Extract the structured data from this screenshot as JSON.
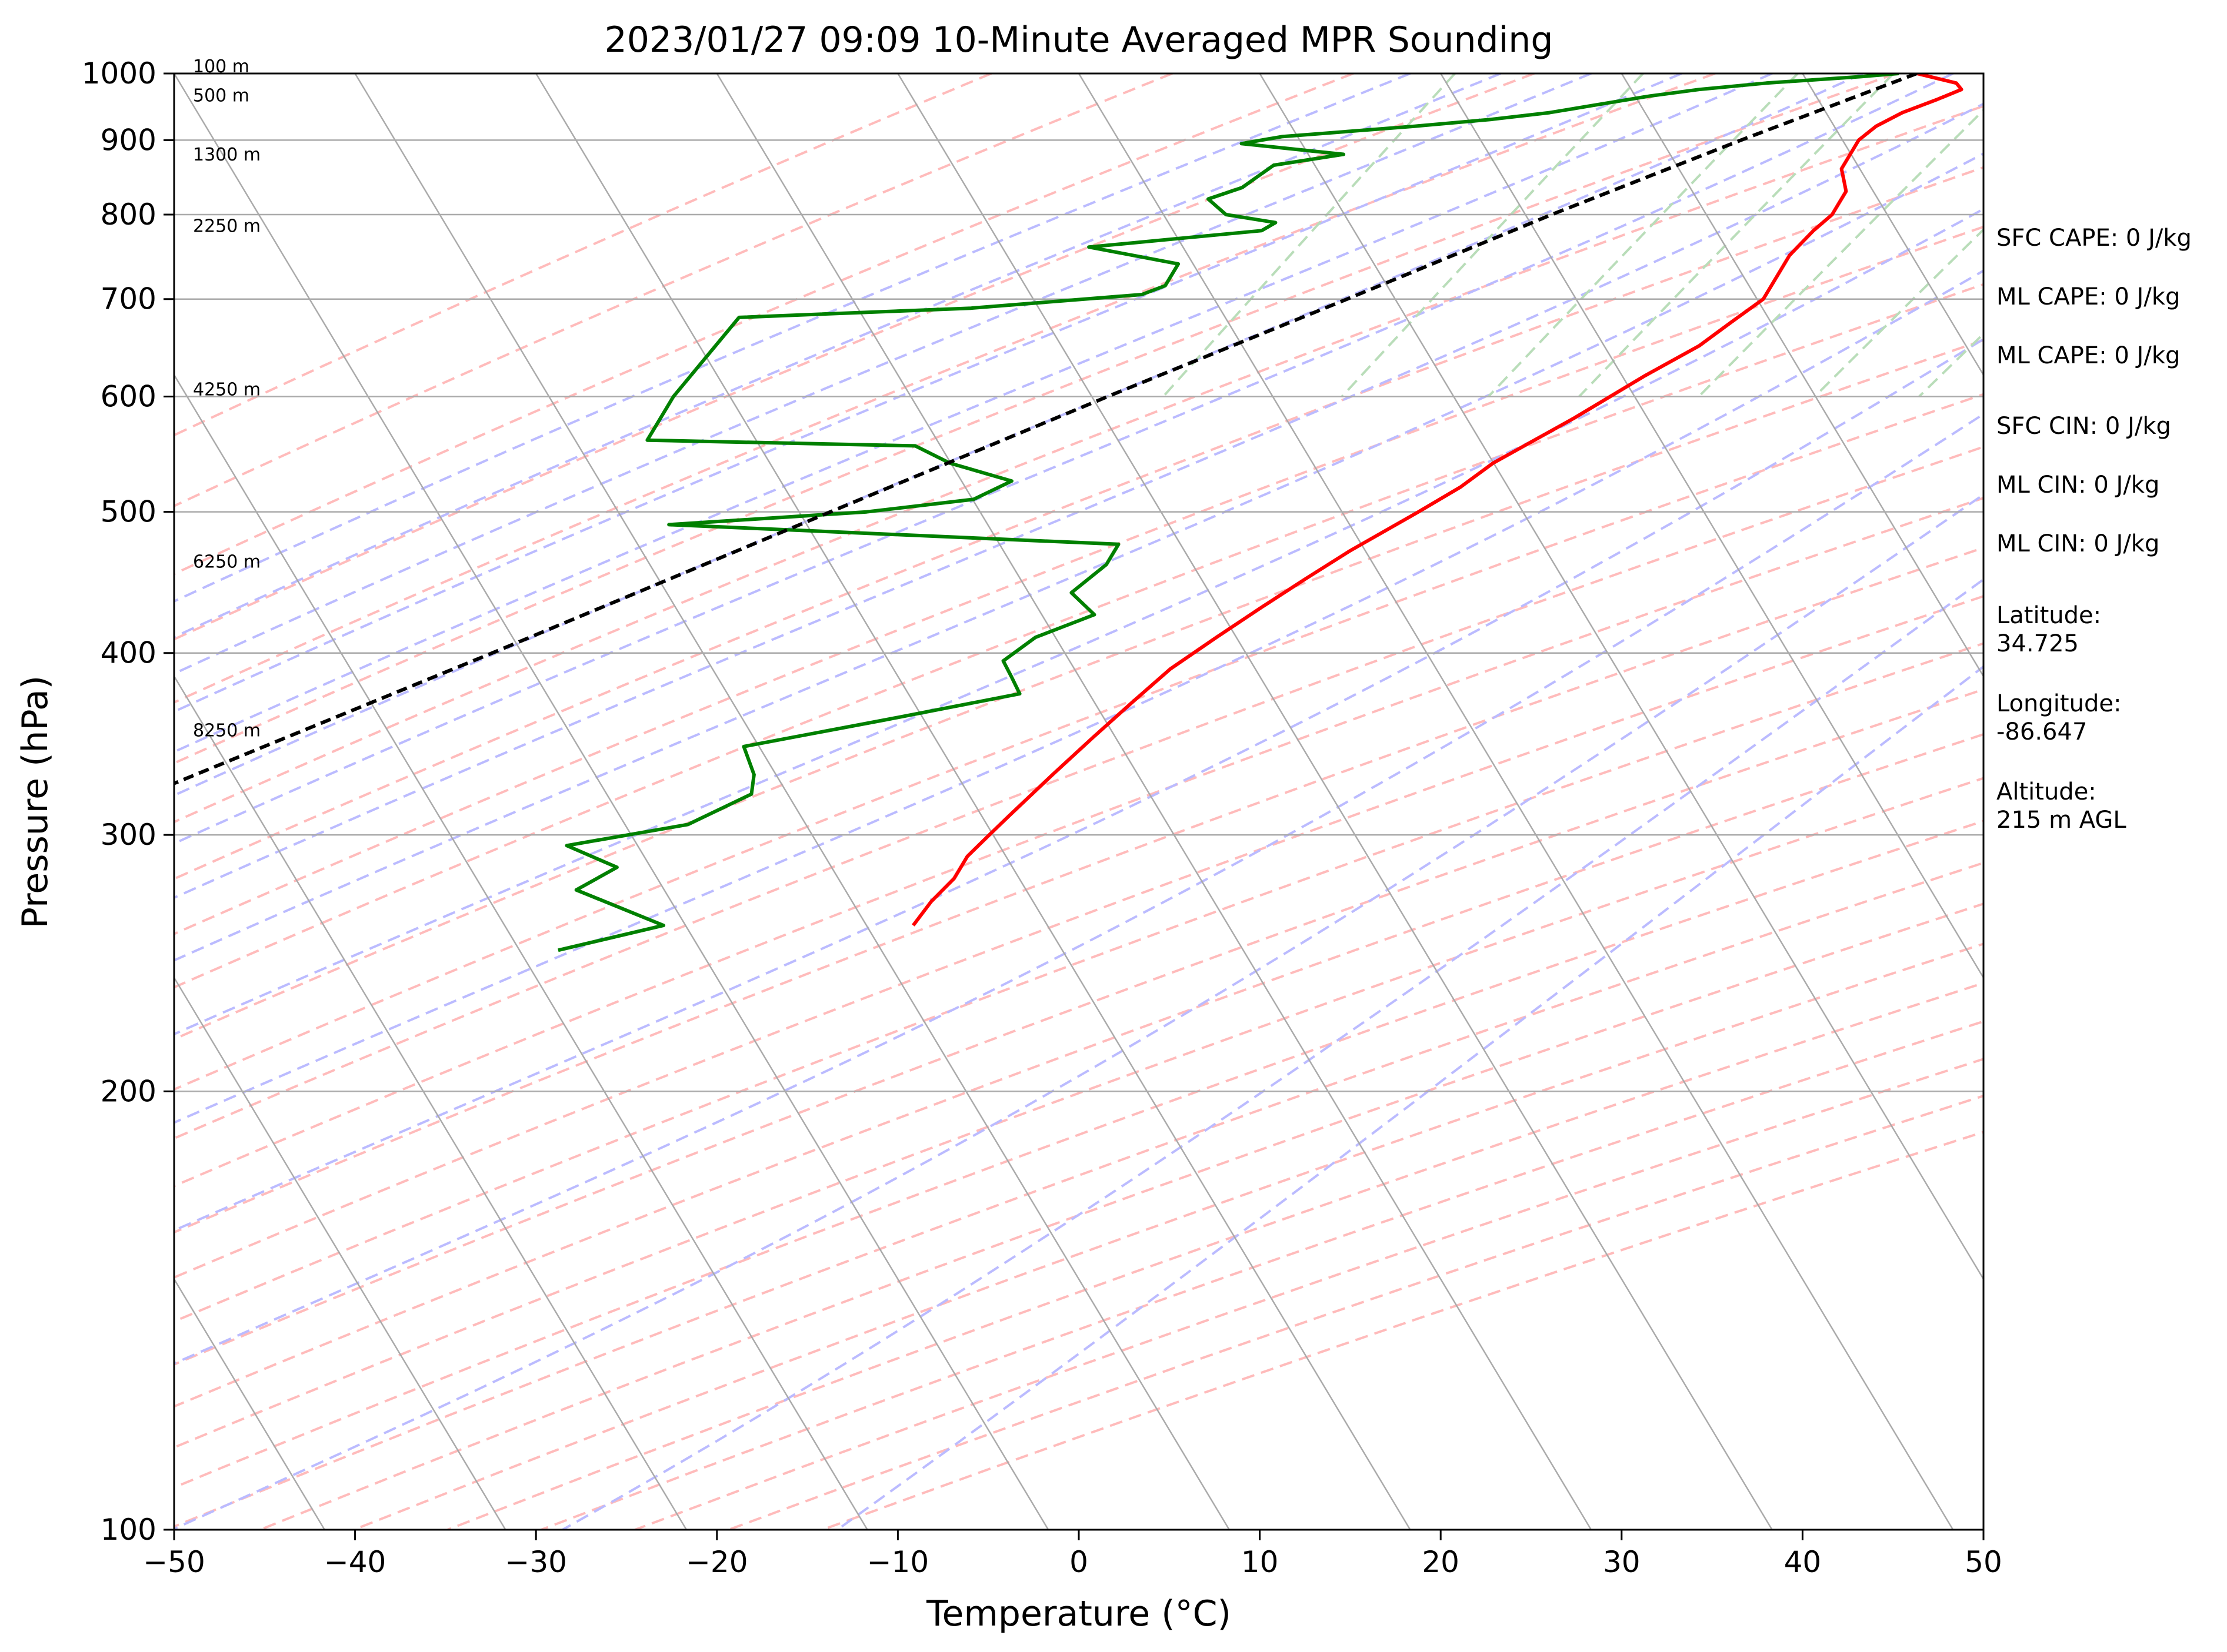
{
  "chart_data": {
    "type": "line",
    "title": "2023/01/27 09:09 10-Minute Averaged MPR Sounding",
    "xlabel": "Temperature (°C)",
    "ylabel": "Pressure (hPa)",
    "xlim": [
      -50,
      50
    ],
    "ylim": [
      1000,
      100
    ],
    "y_scale": "log",
    "skew": "skew-T",
    "grid": true,
    "x_ticks": [
      "−50",
      "−40",
      "−30",
      "−20",
      "−10",
      "0",
      "10",
      "20",
      "30",
      "40",
      "50"
    ],
    "y_ticks": [
      "100",
      "200",
      "300",
      "400",
      "500",
      "600",
      "700",
      "800",
      "900",
      "1000"
    ],
    "series": [
      {
        "role": "temperature",
        "color": "#ff0000",
        "points": [
          [
            1000,
            -2.0
          ],
          [
            985,
            0.5
          ],
          [
            975,
            1.0
          ],
          [
            960,
            0.0
          ],
          [
            940,
            -1.5
          ],
          [
            920,
            -2.5
          ],
          [
            900,
            -3.0
          ],
          [
            880,
            -3.0
          ],
          [
            860,
            -3.0
          ],
          [
            845,
            -2.5
          ],
          [
            830,
            -2.0
          ],
          [
            815,
            -2.0
          ],
          [
            800,
            -2.0
          ],
          [
            780,
            -2.5
          ],
          [
            750,
            -3.0
          ],
          [
            725,
            -3.0
          ],
          [
            700,
            -3.0
          ],
          [
            675,
            -4.0
          ],
          [
            650,
            -5.0
          ],
          [
            620,
            -7.0
          ],
          [
            580,
            -9.5
          ],
          [
            540,
            -12.5
          ],
          [
            520,
            -13.5
          ],
          [
            500,
            -15.0
          ],
          [
            470,
            -17.5
          ],
          [
            450,
            -19.0
          ],
          [
            430,
            -20.5
          ],
          [
            410,
            -22.0
          ],
          [
            390,
            -23.5
          ],
          [
            370,
            -24.5
          ],
          [
            350,
            -25.5
          ],
          [
            330,
            -26.5
          ],
          [
            310,
            -27.5
          ],
          [
            300,
            -28.0
          ],
          [
            290,
            -28.5
          ],
          [
            280,
            -28.5
          ],
          [
            270,
            -29.0
          ],
          [
            260,
            -29.2
          ]
        ]
      },
      {
        "role": "dewpoint",
        "color": "#008000",
        "points": [
          [
            1000,
            -3.0
          ],
          [
            995,
            -5.0
          ],
          [
            985,
            -10.0
          ],
          [
            975,
            -13.5
          ],
          [
            965,
            -16.0
          ],
          [
            950,
            -19.0
          ],
          [
            940,
            -21.0
          ],
          [
            930,
            -24.0
          ],
          [
            920,
            -28.0
          ],
          [
            905,
            -35.0
          ],
          [
            895,
            -37.0
          ],
          [
            890,
            -35.0
          ],
          [
            880,
            -31.0
          ],
          [
            865,
            -34.5
          ],
          [
            850,
            -35.0
          ],
          [
            835,
            -35.5
          ],
          [
            820,
            -37.0
          ],
          [
            800,
            -35.5
          ],
          [
            790,
            -32.5
          ],
          [
            780,
            -33.0
          ],
          [
            760,
            -42.0
          ],
          [
            740,
            -36.5
          ],
          [
            715,
            -36.5
          ],
          [
            705,
            -37.5
          ],
          [
            690,
            -46.5
          ],
          [
            680,
            -59.0
          ],
          [
            600,
            -60.0
          ],
          [
            560,
            -60.0
          ],
          [
            555,
            -45.0
          ],
          [
            540,
            -42.5
          ],
          [
            525,
            -38.5
          ],
          [
            510,
            -40.0
          ],
          [
            500,
            -45.5
          ],
          [
            490,
            -56.0
          ],
          [
            475,
            -30.5
          ],
          [
            460,
            -30.5
          ],
          [
            440,
            -31.5
          ],
          [
            425,
            -29.5
          ],
          [
            410,
            -32.0
          ],
          [
            395,
            -33.0
          ],
          [
            385,
            -32.0
          ],
          [
            375,
            -31.0
          ],
          [
            360,
            -37.5
          ],
          [
            345,
            -44.5
          ],
          [
            330,
            -43.0
          ],
          [
            320,
            -42.5
          ],
          [
            305,
            -45.0
          ],
          [
            295,
            -51.0
          ],
          [
            285,
            -47.5
          ],
          [
            275,
            -49.0
          ],
          [
            260,
            -43.0
          ],
          [
            250,
            -48.0
          ]
        ]
      },
      {
        "role": "parcel",
        "color": "#000000",
        "points": [
          [
            1000,
            -2.0
          ],
          [
            900,
            -9.5
          ],
          [
            800,
            -17.5
          ],
          [
            700,
            -26.0
          ],
          [
            600,
            -36.0
          ],
          [
            500,
            -47.5
          ],
          [
            400,
            -61.5
          ],
          [
            300,
            -80.0
          ]
        ]
      }
    ],
    "height_labels": [
      {
        "p": 1000,
        "label": "100 m"
      },
      {
        "p": 955,
        "label": "500 m"
      },
      {
        "p": 870,
        "label": "1300 m"
      },
      {
        "p": 777,
        "label": "2250 m"
      },
      {
        "p": 600,
        "label": "4250 m"
      },
      {
        "p": 457,
        "label": "6250 m"
      },
      {
        "p": 350,
        "label": "8250 m"
      }
    ],
    "background_lines": {
      "isotherms": {
        "color": "#aaaaaa"
      },
      "dry_adiabats": {
        "color": "#ffbbbb",
        "style": "dashed"
      },
      "moist_adiabats": {
        "color": "#bbbbff",
        "style": "dashed"
      },
      "mixing_ratio": {
        "color": "#b9ddb9",
        "style": "dashed"
      }
    },
    "side_info": {
      "sfc_cape": "SFC CAPE: 0 J/kg",
      "ml_cape": "ML CAPE: 0 J/kg",
      "mu_cape": "ML CAPE: 0 J/kg",
      "sfc_cin": "SFC CIN: 0 J/kg",
      "ml_cin": "ML CIN: 0 J/kg",
      "mu_cin": "ML CIN: 0 J/kg",
      "lat_label": "Latitude:",
      "lat_value": "34.725",
      "lon_label": "Longitude:",
      "lon_value": "-86.647",
      "alt_label": "Altitude:",
      "alt_value": "215 m AGL"
    }
  }
}
